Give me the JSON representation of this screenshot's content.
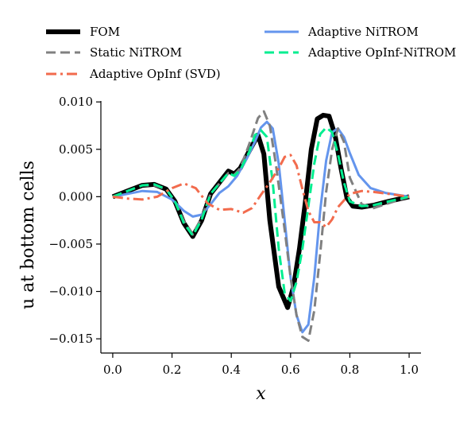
{
  "chart_data": {
    "type": "line",
    "title": "",
    "xlabel": "x",
    "ylabel": "u at bottom cells",
    "xlim": [
      -0.04,
      1.04
    ],
    "ylim": [
      -0.0165,
      0.0101
    ],
    "xticks": [
      0.0,
      0.2,
      0.4,
      0.6,
      0.8,
      1.0
    ],
    "xtick_labels": [
      "0.0",
      "0.2",
      "0.4",
      "0.6",
      "0.8",
      "1.0"
    ],
    "yticks": [
      0.01,
      0.005,
      0.0,
      -0.005,
      -0.01,
      -0.015
    ],
    "ytick_labels": [
      "0.010",
      "0.005",
      "0.000",
      "−0.005",
      "−0.010",
      "−0.015"
    ],
    "grid": false,
    "legend_position": "top",
    "series": [
      {
        "name": "FOM",
        "color": "#000000",
        "style": "solid",
        "x": [
          0.0,
          0.05,
          0.1,
          0.14,
          0.18,
          0.21,
          0.24,
          0.27,
          0.3,
          0.33,
          0.36,
          0.39,
          0.41,
          0.43,
          0.46,
          0.49,
          0.51,
          0.53,
          0.56,
          0.59,
          0.61,
          0.63,
          0.65,
          0.67,
          0.69,
          0.71,
          0.73,
          0.75,
          0.77,
          0.79,
          0.81,
          0.84,
          0.88,
          0.93,
          1.0
        ],
        "y": [
          0.0,
          0.0006,
          0.0012,
          0.0013,
          0.0008,
          -0.0005,
          -0.0028,
          -0.0042,
          -0.0025,
          0.0003,
          0.0015,
          0.0027,
          0.0024,
          0.003,
          0.0048,
          0.0065,
          0.0045,
          -0.0025,
          -0.0095,
          -0.0117,
          -0.0095,
          -0.0055,
          -0.0005,
          0.005,
          0.0082,
          0.0086,
          0.0085,
          0.0065,
          0.003,
          -0.0001,
          -0.001,
          -0.0011,
          -0.0009,
          -0.0005,
          0.0
        ]
      },
      {
        "name": "Adaptive NiTROM",
        "color": "#6495ed",
        "style": "solid",
        "x": [
          0.0,
          0.05,
          0.1,
          0.15,
          0.2,
          0.24,
          0.27,
          0.3,
          0.33,
          0.36,
          0.39,
          0.42,
          0.45,
          0.48,
          0.5,
          0.52,
          0.54,
          0.56,
          0.58,
          0.6,
          0.62,
          0.64,
          0.66,
          0.68,
          0.7,
          0.72,
          0.74,
          0.76,
          0.78,
          0.8,
          0.83,
          0.87,
          0.92,
          1.0
        ],
        "y": [
          0.0,
          0.0003,
          0.0006,
          0.0005,
          -0.0003,
          -0.0015,
          -0.0021,
          -0.0019,
          -0.0008,
          0.0004,
          0.0011,
          0.0022,
          0.0039,
          0.0058,
          0.0073,
          0.0079,
          0.0072,
          0.0035,
          -0.0025,
          -0.0085,
          -0.0125,
          -0.0143,
          -0.0135,
          -0.0085,
          -0.0015,
          0.0038,
          0.0068,
          0.0072,
          0.0063,
          0.0046,
          0.0023,
          0.0009,
          0.0004,
          0.0
        ]
      },
      {
        "name": "Static NiTROM",
        "color": "#808080",
        "style": "dashed",
        "x": [
          0.0,
          0.05,
          0.1,
          0.14,
          0.18,
          0.21,
          0.24,
          0.27,
          0.3,
          0.33,
          0.36,
          0.39,
          0.41,
          0.43,
          0.46,
          0.49,
          0.51,
          0.53,
          0.55,
          0.58,
          0.6,
          0.62,
          0.64,
          0.66,
          0.68,
          0.7,
          0.72,
          0.74,
          0.76,
          0.78,
          0.8,
          0.84,
          0.88,
          0.93,
          1.0
        ],
        "y": [
          0.0,
          0.0006,
          0.0012,
          0.0012,
          0.0008,
          -0.0005,
          -0.0026,
          -0.004,
          -0.0022,
          0.0003,
          0.0014,
          0.0025,
          0.0023,
          0.003,
          0.0055,
          0.0083,
          0.009,
          0.0075,
          0.0035,
          -0.0035,
          -0.0085,
          -0.0125,
          -0.0148,
          -0.0152,
          -0.012,
          -0.006,
          0.0005,
          0.005,
          0.0072,
          0.0058,
          0.002,
          -0.0008,
          -0.0012,
          -0.0007,
          0.0
        ]
      },
      {
        "name": "Adaptive OpInf-NiTROM",
        "color": "#00ee90",
        "style": "dashed",
        "x": [
          0.0,
          0.05,
          0.1,
          0.14,
          0.18,
          0.21,
          0.24,
          0.27,
          0.3,
          0.33,
          0.36,
          0.39,
          0.41,
          0.43,
          0.46,
          0.48,
          0.5,
          0.52,
          0.54,
          0.56,
          0.58,
          0.6,
          0.62,
          0.64,
          0.66,
          0.68,
          0.7,
          0.72,
          0.74,
          0.76,
          0.78,
          0.8,
          0.84,
          0.88,
          0.93,
          1.0
        ],
        "y": [
          0.0,
          0.0006,
          0.0012,
          0.0013,
          0.0008,
          -0.0005,
          -0.0028,
          -0.0041,
          -0.0024,
          0.0003,
          0.0014,
          0.0025,
          0.0022,
          0.0028,
          0.0047,
          0.0065,
          0.007,
          0.0063,
          0.0015,
          -0.0055,
          -0.0102,
          -0.011,
          -0.009,
          -0.0055,
          -0.001,
          0.0035,
          0.0066,
          0.0073,
          0.0068,
          0.0045,
          0.0015,
          -0.0005,
          -0.001,
          -0.0009,
          -0.0005,
          0.0
        ]
      },
      {
        "name": "Adaptive OpInf (SVD)",
        "color": "#f26b4d",
        "style": "dashdot",
        "x": [
          0.0,
          0.05,
          0.1,
          0.15,
          0.2,
          0.24,
          0.28,
          0.32,
          0.36,
          0.4,
          0.44,
          0.47,
          0.5,
          0.53,
          0.56,
          0.58,
          0.6,
          0.62,
          0.64,
          0.66,
          0.68,
          0.7,
          0.72,
          0.74,
          0.76,
          0.8,
          0.84,
          0.88,
          0.93,
          1.0
        ],
        "y": [
          0.0,
          -0.0002,
          -0.0003,
          0.0,
          0.0009,
          0.0014,
          0.0009,
          -0.0007,
          -0.0014,
          -0.0013,
          -0.0017,
          -0.0012,
          0.0002,
          0.0015,
          0.003,
          0.0042,
          0.0044,
          0.0033,
          0.0008,
          -0.0015,
          -0.0027,
          -0.0027,
          -0.0032,
          -0.0024,
          -0.0011,
          0.0003,
          0.0006,
          0.0005,
          0.0003,
          0.0
        ]
      }
    ],
    "legend_order": [
      "FOM",
      "Static NiTROM",
      "Adaptive OpInf (SVD)",
      "Adaptive NiTROM",
      "Adaptive OpInf-NiTROM"
    ]
  }
}
